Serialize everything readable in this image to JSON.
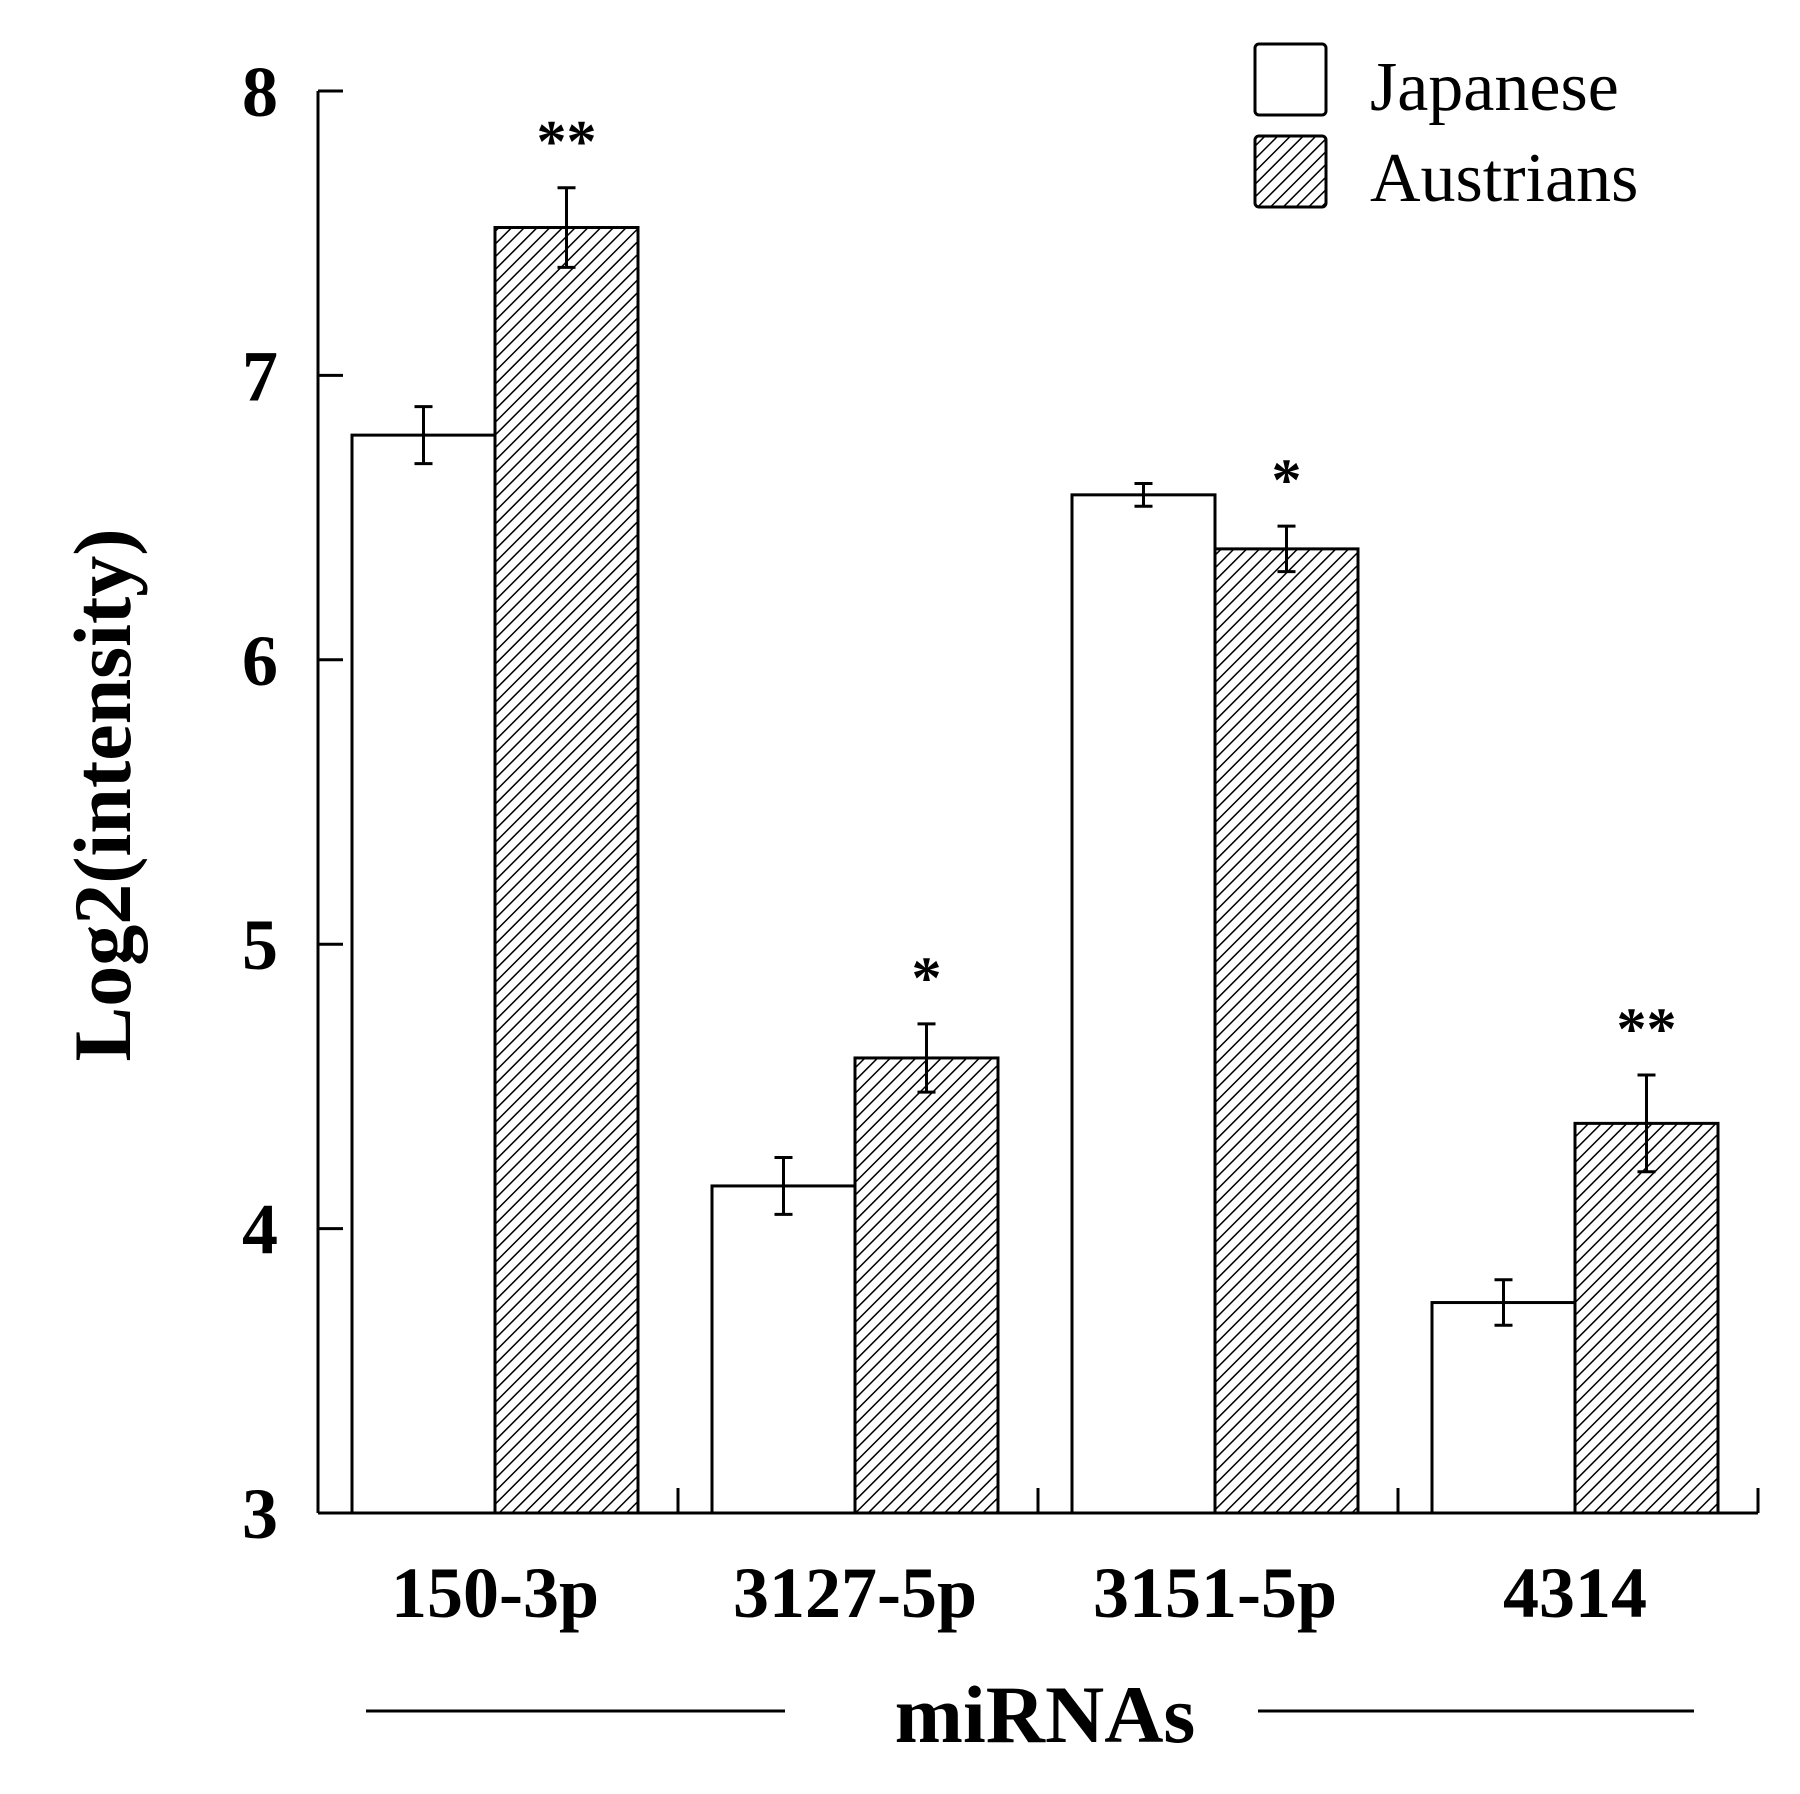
{
  "chart_data": {
    "type": "bar",
    "title": "",
    "xlabel": "miRNAs",
    "ylabel": "Log2(intensity)",
    "ylim": [
      3,
      8
    ],
    "yticks": [
      3,
      4,
      5,
      6,
      7,
      8
    ],
    "grid": false,
    "legend_position": "top-right",
    "categories": [
      "150-3p",
      "3127-5p",
      "3151-5p",
      "4314"
    ],
    "series": [
      {
        "name": "Japanese",
        "pattern": "open",
        "values": [
          6.79,
          4.15,
          6.58,
          3.74
        ],
        "errors": [
          0.1,
          0.1,
          0.04,
          0.08
        ],
        "significance": [
          "",
          "",
          "",
          ""
        ]
      },
      {
        "name": "Austrians",
        "pattern": "hatched",
        "values": [
          7.52,
          4.6,
          6.39,
          4.37
        ],
        "errors": [
          0.14,
          0.12,
          0.08,
          0.17
        ],
        "significance": [
          "**",
          "*",
          "*",
          "**"
        ]
      }
    ]
  }
}
